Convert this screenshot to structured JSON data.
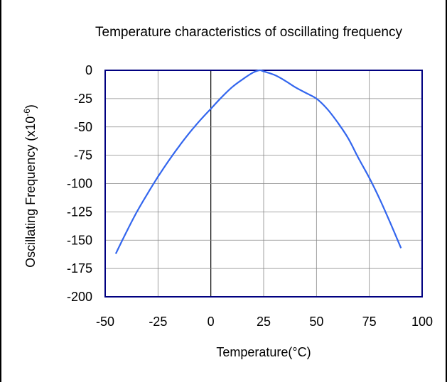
{
  "chart_data": {
    "type": "line",
    "title": "Temperature characteristics of oscillating frequency",
    "xlabel": "Temperature(°C)",
    "ylabel_main": "Oscillating Frequency  (x10",
    "ylabel_sup": "-6",
    "ylabel_close": ")",
    "xlim": [
      -50,
      100
    ],
    "ylim": [
      -200,
      0
    ],
    "x_ticks": [
      -50,
      -25,
      0,
      25,
      50,
      75,
      100
    ],
    "y_ticks": [
      0,
      -25,
      -50,
      -75,
      -100,
      -125,
      -150,
      -175,
      -200
    ],
    "grid": true,
    "line_color": "#3366ee",
    "series": [
      {
        "x": [
          -45,
          -40,
          -35,
          -30,
          -25,
          -20,
          -15,
          -10,
          -5,
          0,
          5,
          10,
          15,
          20,
          23,
          25,
          30,
          35,
          40,
          45,
          50,
          55,
          60,
          65,
          70,
          75,
          80,
          85,
          90
        ],
        "values": [
          -162,
          -143,
          -125,
          -109,
          -94,
          -80,
          -67,
          -55,
          -44,
          -34,
          -24,
          -15,
          -8,
          -2,
          0,
          -1,
          -4,
          -9,
          -15,
          -20,
          -25,
          -34,
          -46,
          -60,
          -78,
          -95,
          -114,
          -135,
          -157
        ]
      }
    ]
  }
}
